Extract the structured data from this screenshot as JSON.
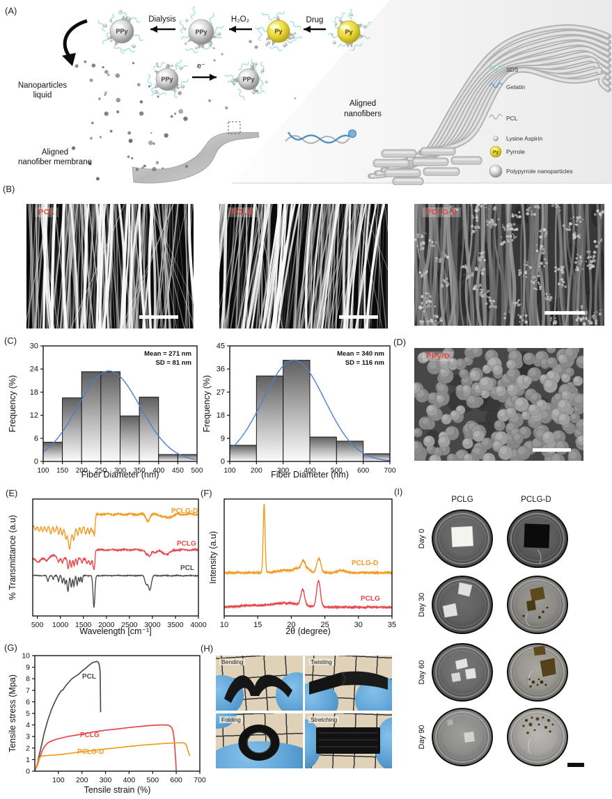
{
  "colors": {
    "accent_red": "#e8453c",
    "orange": "#f59a1f",
    "red": "#e8474b",
    "gray_curve": "#4d4d4d",
    "blue_curve": "#4b7fc9"
  },
  "figure": {
    "panel_labels": [
      "(A)",
      "(B)",
      "(C)",
      "(D)",
      "(E)",
      "(F)",
      "(G)",
      "(H)",
      "(I)"
    ]
  },
  "panelA": {
    "process_labels": {
      "dialysis": "Dialysis",
      "peroxide": "H₂O₂",
      "drug": "Drug",
      "electron": "e⁻"
    },
    "sphere_labels": {
      "polypyrrole": "PPy",
      "pyrrole": "Py"
    },
    "captions": {
      "nanoparticles_liquid": [
        "Nanoparticles",
        "liquid"
      ],
      "aligned_membrane": [
        "Aligned",
        "nanofiber membrane"
      ],
      "aligned_nanofibers": [
        "Aligned",
        "nanofibers"
      ]
    },
    "legend": [
      {
        "label": "SDS",
        "icon": "sds-squiggle-icon"
      },
      {
        "label": "Gelatin",
        "icon": "gelatin-squiggle-icon"
      },
      {
        "label": "PCL",
        "icon": "pcl-squiggle-icon"
      },
      {
        "label": "Lysine Aspirin",
        "icon": "lysine-aspirin-icon"
      },
      {
        "label": "Pyrrole",
        "icon": "pyrrole-sphere-icon"
      },
      {
        "label": "Polypyrrole nanoparticles",
        "icon": "polypyrrole-sphere-icon"
      }
    ]
  },
  "panelB": {
    "images": [
      {
        "label": "PCL"
      },
      {
        "label": "PCLG"
      },
      {
        "label": "PCLG-D"
      }
    ]
  },
  "panelD": {
    "label": "PPy/D"
  },
  "panelH": {
    "photos": [
      {
        "label": "Bending"
      },
      {
        "label": "Twisting"
      },
      {
        "label": "Folding"
      },
      {
        "label": "Stretching"
      }
    ]
  },
  "panelI": {
    "columns": [
      "PCLG",
      "PCLG-D"
    ],
    "rows": [
      {
        "day": "Day 0",
        "dishes": [
          {
            "sample": "PCLG",
            "content": "white-square",
            "tone": "#646464"
          },
          {
            "sample": "PCLG-D",
            "content": "black-square",
            "tone": "#5a5a5a"
          }
        ]
      },
      {
        "day": "Day 30",
        "dishes": [
          {
            "sample": "PCLG",
            "content": "white-fragments-2",
            "tone": "#606060"
          },
          {
            "sample": "PCLG-D",
            "content": "brown-fragments",
            "tone": "#8b8a86"
          }
        ]
      },
      {
        "day": "Day 60",
        "dishes": [
          {
            "sample": "PCLG",
            "content": "white-fragments-3",
            "tone": "#6b6b6b"
          },
          {
            "sample": "PCLG-D",
            "content": "brown-chunks",
            "tone": "#98968f"
          }
        ]
      },
      {
        "day": "Day 90",
        "dishes": [
          {
            "sample": "PCLG",
            "content": "white-fragment-small",
            "tone": "#8d8d8b"
          },
          {
            "sample": "PCLG-D",
            "content": "brown-specks",
            "tone": "#a7a5a1"
          }
        ]
      }
    ]
  },
  "chart_data": [
    {
      "id": "hist_pcl",
      "type": "bar",
      "xlabel": "Fiber Diameter (nm)",
      "ylabel": "Frequency (%)",
      "xlim": [
        100,
        500
      ],
      "ylim": [
        0,
        30
      ],
      "xticks": [
        100,
        150,
        200,
        250,
        300,
        350,
        400,
        450,
        500
      ],
      "yticks": [
        0,
        6,
        12,
        18,
        24,
        30
      ],
      "bin_edges": [
        100,
        150,
        200,
        250,
        300,
        350,
        400,
        450,
        500
      ],
      "values": [
        5,
        16.5,
        23.3,
        23.3,
        11.8,
        16.7,
        1.8,
        1.8
      ],
      "fit_curve": {
        "shape": "gaussian",
        "mean": 271,
        "sd": 81,
        "peak": 23.5
      },
      "annotation": [
        "Mean = 271 nm",
        "SD = 81 nm"
      ]
    },
    {
      "id": "hist_pclg",
      "type": "bar",
      "xlabel": "Fiber Diameter (nm)",
      "ylabel": "Frequency (%)",
      "xlim": [
        100,
        700
      ],
      "ylim": [
        0,
        45
      ],
      "xticks": [
        100,
        200,
        300,
        400,
        500,
        600,
        700
      ],
      "yticks": [
        0,
        9,
        18,
        27,
        36,
        45
      ],
      "bin_edges": [
        100,
        200,
        300,
        400,
        500,
        600,
        700
      ],
      "values": [
        6.3,
        33.3,
        39.4,
        9.5,
        7.9,
        3
      ],
      "fit_curve": {
        "shape": "gaussian",
        "mean": 340,
        "sd": 116,
        "peak": 39.5
      },
      "annotation": [
        "Mean = 340 nm",
        "SD = 116 nm"
      ]
    },
    {
      "id": "ftir",
      "type": "line",
      "xlabel": "Wavelength [cm⁻¹]",
      "ylabel": "% Transmittance (a.u)",
      "xlim": [
        400,
        4000
      ],
      "xticks": [
        500,
        1000,
        1500,
        2000,
        2500,
        3000,
        3500,
        4000
      ],
      "series": [
        {
          "name": "PCLG-D",
          "color": "#f59a1f",
          "baseline": 0.23,
          "step_up": {
            "at": 1765,
            "rise": 0.1
          },
          "noise": 0.013,
          "dips": [
            [
              460,
              18,
              0.04
            ],
            [
              540,
              20,
              0.05
            ],
            [
              620,
              18,
              0.04
            ],
            [
              700,
              20,
              0.05
            ],
            [
              790,
              22,
              0.06
            ],
            [
              880,
              20,
              0.05
            ],
            [
              965,
              18,
              0.07
            ],
            [
              1040,
              20,
              0.08
            ],
            [
              1120,
              22,
              0.1
            ],
            [
              1200,
              30,
              0.2
            ],
            [
              1290,
              24,
              0.12
            ],
            [
              1380,
              20,
              0.07
            ],
            [
              1460,
              18,
              0.06
            ],
            [
              1550,
              20,
              0.07
            ],
            [
              1630,
              20,
              0.06
            ],
            [
              1700,
              16,
              0.05
            ],
            [
              1737,
              13,
              0.08
            ],
            [
              2900,
              40,
              0.055
            ],
            [
              3320,
              100,
              0.03
            ]
          ],
          "label_xy": [
            238,
            37
          ]
        },
        {
          "name": "PCLG",
          "color": "#e8474b",
          "baseline": 0.51,
          "step_up": {
            "at": 1755,
            "rise": 0.075
          },
          "noise": 0.01,
          "dips": [
            [
              520,
              40,
              0.03
            ],
            [
              700,
              20,
              0.02
            ],
            [
              850,
              60,
              -0.025
            ],
            [
              960,
              16,
              0.03
            ],
            [
              1045,
              14,
              0.04
            ],
            [
              1170,
              16,
              0.09
            ],
            [
              1240,
              14,
              0.07
            ],
            [
              1300,
              14,
              0.06
            ],
            [
              1365,
              12,
              0.05
            ],
            [
              1470,
              12,
              0.04
            ],
            [
              1580,
              20,
              0.04
            ],
            [
              1650,
              22,
              0.05
            ],
            [
              1730,
              18,
              0.095
            ],
            [
              2870,
              28,
              0.035
            ],
            [
              2940,
              30,
              0.055
            ],
            [
              3060,
              40,
              0.02
            ],
            [
              3300,
              90,
              0.035
            ]
          ],
          "label_xy": [
            246,
            84
          ]
        },
        {
          "name": "PCL",
          "color": "#4d4d4d",
          "baseline": 0.655,
          "noise": 0.006,
          "dips": [
            [
              730,
              18,
              0.05
            ],
            [
              845,
              12,
              0.03
            ],
            [
              960,
              14,
              0.05
            ],
            [
              1045,
              16,
              0.06
            ],
            [
              1105,
              14,
              0.07
            ],
            [
              1165,
              18,
              0.135
            ],
            [
              1240,
              16,
              0.1
            ],
            [
              1295,
              14,
              0.09
            ],
            [
              1365,
              14,
              0.08
            ],
            [
              1420,
              12,
              0.05
            ],
            [
              1470,
              12,
              0.06
            ],
            [
              1730,
              20,
              0.275
            ],
            [
              2865,
              30,
              0.07
            ],
            [
              2945,
              32,
              0.12
            ]
          ],
          "label_xy": [
            251,
            119
          ]
        }
      ]
    },
    {
      "id": "xrd",
      "type": "line",
      "xlabel": "2θ (degree)",
      "ylabel": "Intensity (a.u)",
      "xlim": [
        10,
        35
      ],
      "xticks": [
        10,
        15,
        20,
        25,
        30,
        35
      ],
      "series": [
        {
          "name": "PCLG-D",
          "color": "#f59a1f",
          "baseline": 0.63,
          "noise": 0.014,
          "peaks": [
            [
              15.95,
              0.585,
              0.14
            ],
            [
              19.0,
              0.02,
              1.2
            ],
            [
              21.0,
              0.035,
              0.6
            ],
            [
              21.8,
              0.085,
              0.28
            ],
            [
              22.5,
              0.03,
              0.35
            ],
            [
              24.1,
              0.125,
              0.3
            ],
            [
              27.5,
              0.02,
              0.5
            ]
          ],
          "label_xy": [
            205,
            112
          ]
        },
        {
          "name": "PCLG",
          "color": "#e8474b",
          "baseline": 0.925,
          "noise": 0.013,
          "peaks": [
            [
              13.5,
              0.015,
              1.5
            ],
            [
              19.0,
              0.035,
              2.2
            ],
            [
              21.7,
              0.135,
              0.28
            ],
            [
              24.05,
              0.225,
              0.28
            ]
          ],
          "label_xy": [
            218,
            163
          ]
        }
      ]
    },
    {
      "id": "tensile",
      "type": "line",
      "xlabel": "Tensile strain (%)",
      "ylabel": "Tensile stress (Mpa)",
      "xlim": [
        0,
        700
      ],
      "ylim": [
        0,
        10
      ],
      "xticks": [
        100,
        200,
        300,
        400,
        500,
        600,
        700
      ],
      "yticks": [
        0,
        1,
        2,
        3,
        4,
        5,
        6,
        7,
        8,
        9,
        10
      ],
      "series": [
        {
          "name": "PCL",
          "color": "#4d4d4d",
          "label_xy": [
            110,
            50
          ],
          "points": [
            [
              0,
              0
            ],
            [
              10,
              0.6
            ],
            [
              20,
              1.5
            ],
            [
              30,
              2.4
            ],
            [
              40,
              3.3
            ],
            [
              55,
              4.4
            ],
            [
              70,
              5.3
            ],
            [
              85,
              6.0
            ],
            [
              100,
              6.6
            ],
            [
              112,
              6.95
            ],
            [
              120,
              7.05
            ],
            [
              128,
              7.3
            ],
            [
              140,
              7.6
            ],
            [
              155,
              7.95
            ],
            [
              168,
              8.15
            ],
            [
              180,
              8.3
            ],
            [
              192,
              8.5
            ],
            [
              205,
              8.75
            ],
            [
              218,
              8.95
            ],
            [
              232,
              9.2
            ],
            [
              245,
              9.4
            ],
            [
              255,
              9.45
            ],
            [
              262,
              9.5
            ],
            [
              268,
              9.45
            ],
            [
              272,
              9.3
            ],
            [
              275,
              9.0
            ],
            [
              277,
              8.6
            ],
            [
              278,
              7.4
            ],
            [
              279,
              5.1
            ]
          ]
        },
        {
          "name": "PCLG",
          "color": "#e8474b",
          "label_xy": [
            107,
            134
          ],
          "points": [
            [
              0,
              0
            ],
            [
              10,
              0.5
            ],
            [
              20,
              1.1
            ],
            [
              30,
              1.7
            ],
            [
              40,
              2.1
            ],
            [
              55,
              2.45
            ],
            [
              70,
              2.6
            ],
            [
              90,
              2.75
            ],
            [
              110,
              2.85
            ],
            [
              140,
              3.0
            ],
            [
              170,
              3.1
            ],
            [
              200,
              3.2
            ],
            [
              250,
              3.4
            ],
            [
              300,
              3.55
            ],
            [
              350,
              3.65
            ],
            [
              400,
              3.78
            ],
            [
              450,
              3.88
            ],
            [
              500,
              3.97
            ],
            [
              530,
              4.0
            ],
            [
              555,
              4.0
            ],
            [
              570,
              3.95
            ],
            [
              580,
              3.8
            ],
            [
              586,
              3.5
            ],
            [
              591,
              2.8
            ],
            [
              595,
              1.8
            ],
            [
              598,
              0.8
            ],
            [
              600,
              0.05
            ]
          ]
        },
        {
          "name": "PCLG-D",
          "color": "#f59a1f",
          "label_xy": [
            103,
            158
          ],
          "points": [
            [
              0,
              0
            ],
            [
              5,
              0.35
            ],
            [
              12,
              0.8
            ],
            [
              20,
              1.15
            ],
            [
              28,
              1.3
            ],
            [
              40,
              1.33
            ],
            [
              60,
              1.36
            ],
            [
              100,
              1.42
            ],
            [
              150,
              1.55
            ],
            [
              200,
              1.68
            ],
            [
              250,
              1.8
            ],
            [
              300,
              1.92
            ],
            [
              350,
              2.03
            ],
            [
              400,
              2.14
            ],
            [
              450,
              2.24
            ],
            [
              500,
              2.32
            ],
            [
              550,
              2.4
            ],
            [
              590,
              2.44
            ],
            [
              620,
              2.46
            ],
            [
              633,
              2.44
            ],
            [
              640,
              2.35
            ],
            [
              645,
              2.1
            ],
            [
              650,
              1.75
            ],
            [
              655,
              1.45
            ],
            [
              658,
              1.3
            ]
          ]
        }
      ]
    }
  ]
}
